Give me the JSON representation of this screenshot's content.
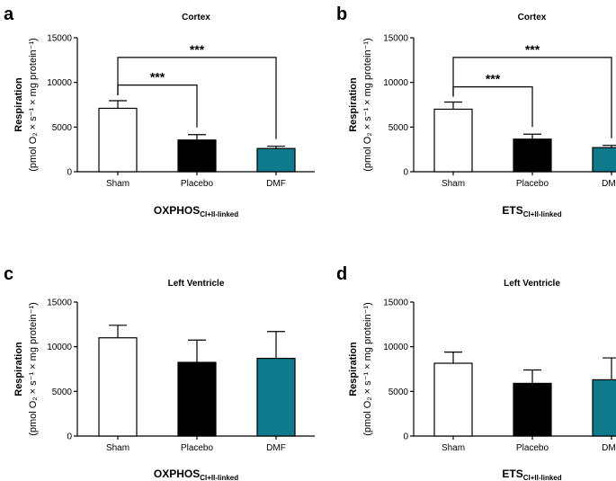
{
  "chart_data": [
    {
      "type": "bar",
      "panel": "a",
      "title": "Cortex",
      "categories": [
        "Sham",
        "Placebo",
        "DMF"
      ],
      "values": [
        7100,
        3550,
        2600
      ],
      "errors": [
        850,
        600,
        250
      ],
      "colors": [
        "#ffffff",
        "#000000",
        "#0e7a8c"
      ],
      "ylim": [
        0,
        15000
      ],
      "yticks": [
        "0",
        "5000",
        "10000",
        "15000"
      ],
      "ylabel_line1": "Respiration",
      "ylabel_line2": "(pmol O₂ × s⁻¹ × mg protein⁻¹)",
      "xtitle_main": "OXPHOS",
      "xtitle_sub": "CI+II-linked",
      "significance": [
        {
          "from": 0,
          "to": 1,
          "label": "***",
          "y": 9700
        },
        {
          "from": 0,
          "to": 2,
          "label": "***",
          "y": 12800
        }
      ]
    },
    {
      "type": "bar",
      "panel": "b",
      "title": "Cortex",
      "categories": [
        "Sham",
        "Placebo",
        "DMF"
      ],
      "values": [
        7000,
        3650,
        2700
      ],
      "errors": [
        800,
        550,
        250
      ],
      "colors": [
        "#ffffff",
        "#000000",
        "#0e7a8c"
      ],
      "ylim": [
        0,
        15000
      ],
      "yticks": [
        "0",
        "5000",
        "10000",
        "15000"
      ],
      "ylabel_line1": "Respiration",
      "ylabel_line2": "(pmol O₂ × s⁻¹ × mg protein⁻¹)",
      "xtitle_main": "ETS",
      "xtitle_sub": "CI+II-linked",
      "significance": [
        {
          "from": 0,
          "to": 1,
          "label": "***",
          "y": 9500
        },
        {
          "from": 0,
          "to": 2,
          "label": "***",
          "y": 12800
        }
      ]
    },
    {
      "type": "bar",
      "panel": "c",
      "title": "Left Ventricle",
      "categories": [
        "Sham",
        "Placebo",
        "DMF"
      ],
      "values": [
        11000,
        8250,
        8700
      ],
      "errors": [
        1400,
        2500,
        3000
      ],
      "colors": [
        "#ffffff",
        "#000000",
        "#0e7a8c"
      ],
      "ylim": [
        0,
        15000
      ],
      "yticks": [
        "0",
        "5000",
        "10000",
        "15000"
      ],
      "ylabel_line1": "Respiration",
      "ylabel_line2": "(pmol O₂ × s⁻¹ × mg protein⁻¹)",
      "xtitle_main": "OXPHOS",
      "xtitle_sub": "CI+II-linked",
      "significance": []
    },
    {
      "type": "bar",
      "panel": "d",
      "title": "Left Ventricle",
      "categories": [
        "Sham",
        "Placebo",
        "DMF"
      ],
      "values": [
        8150,
        5900,
        6300
      ],
      "errors": [
        1250,
        1500,
        2450
      ],
      "colors": [
        "#ffffff",
        "#000000",
        "#0e7a8c"
      ],
      "ylim": [
        0,
        15000
      ],
      "yticks": [
        "0",
        "5000",
        "10000",
        "15000"
      ],
      "ylabel_line1": "Respiration",
      "ylabel_line2": "(pmol O₂ × s⁻¹ × mg protein⁻¹)",
      "xtitle_main": "ETS",
      "xtitle_sub": "CI+II-linked",
      "significance": []
    }
  ]
}
